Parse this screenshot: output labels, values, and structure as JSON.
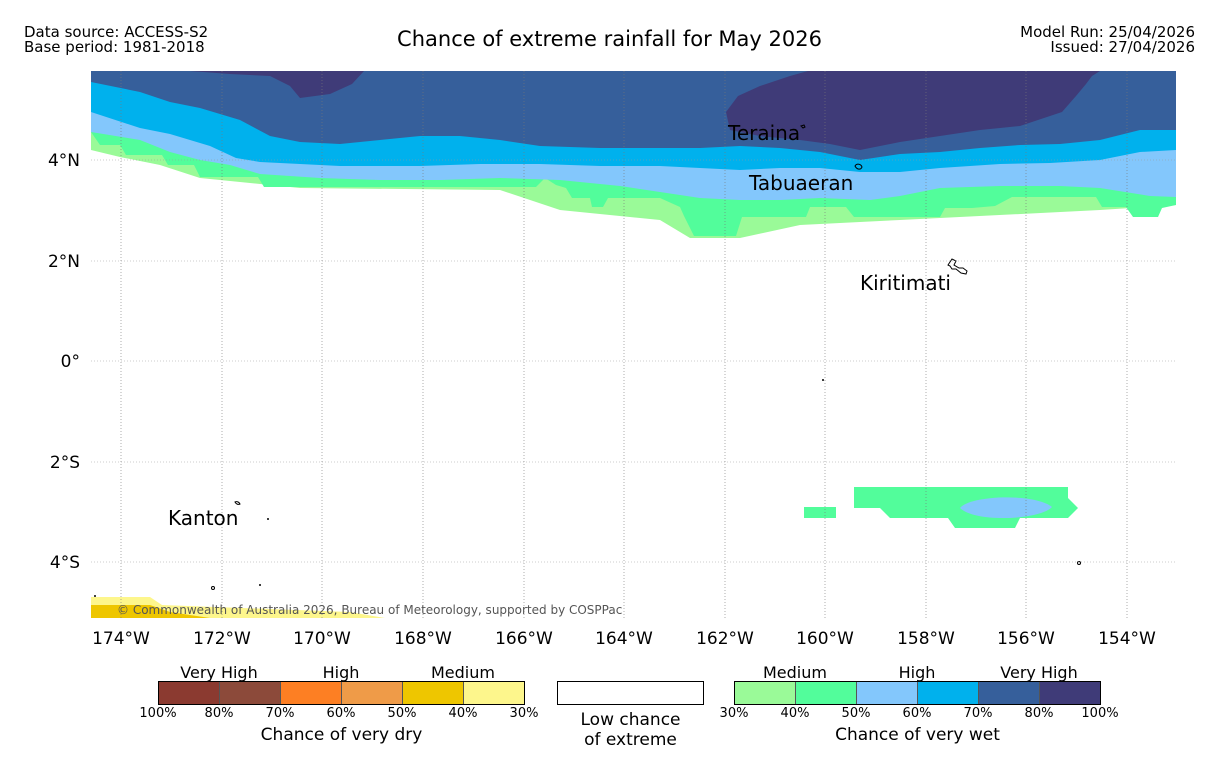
{
  "header": {
    "data_source": "Data source: ACCESS-S2",
    "base_period": "Base period: 1981-2018",
    "title": "Chance of extreme rainfall for May 2026",
    "model_run": "Model Run: 25/04/2026",
    "issued": "Issued: 27/04/2026"
  },
  "map": {
    "lat_labels": [
      "4°N",
      "2°N",
      "0°",
      "2°S",
      "4°S"
    ],
    "lon_labels": [
      "174°W",
      "172°W",
      "170°W",
      "168°W",
      "166°W",
      "164°W",
      "162°W",
      "160°W",
      "158°W",
      "156°W",
      "154°W"
    ],
    "places": {
      "teraina": "Teraina",
      "tabuaeran": "Tabuaeran",
      "kiritimati": "Kiritimati",
      "kanton": "Kanton"
    },
    "copyright": "© Commonwealth of Australia 2026, Bureau of Meteorology, supported by COSPPac"
  },
  "legend": {
    "dry": {
      "groups": [
        "Very High",
        "High",
        "Medium"
      ],
      "ticks": [
        "100%",
        "80%",
        "70%",
        "60%",
        "50%",
        "40%",
        "30%"
      ],
      "caption": "Chance of very dry",
      "colors": [
        "#8b3a30",
        "#8c4a3a",
        "#fd7f23",
        "#ef9b48",
        "#eec600",
        "#fdf68c"
      ]
    },
    "low": {
      "label_line1": "Low chance",
      "label_line2": "of extreme"
    },
    "wet": {
      "groups": [
        "Medium",
        "High",
        "Very High"
      ],
      "ticks": [
        "30%",
        "40%",
        "50%",
        "60%",
        "70%",
        "80%",
        "100%"
      ],
      "caption": "Chance of very wet",
      "colors": [
        "#9afa98",
        "#52fd9b",
        "#83c7fc",
        "#00b1ed",
        "#365f9b",
        "#3f3b78"
      ]
    }
  }
}
